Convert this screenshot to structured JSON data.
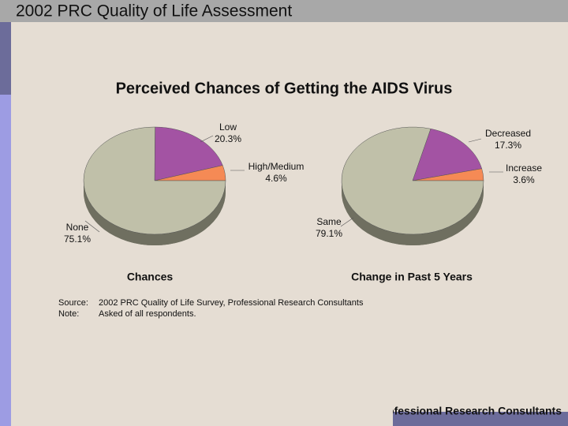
{
  "slide": {
    "header": "2002 PRC Quality of Life Assessment",
    "title": "Perceived Chances of Getting the AIDS Virus",
    "source_label": "Source:",
    "source": "2002 PRC Quality of Life Survey, Professional Research Consultants",
    "note_label": "Note:",
    "note": "Asked of all respondents.",
    "footer": "Professional Research Consultants"
  },
  "chart_data": [
    {
      "type": "pie",
      "title": "Chances",
      "categories": [
        "Low",
        "High/Medium",
        "None"
      ],
      "values": [
        20.3,
        4.6,
        75.1
      ],
      "value_labels": [
        "20.3%",
        "4.6%",
        "75.1%"
      ],
      "colors": [
        "#a353a3",
        "#f58a55",
        "#c0c0a9"
      ]
    },
    {
      "type": "pie",
      "title": "Change in Past 5 Years",
      "categories": [
        "Decreased",
        "Increase",
        "Same"
      ],
      "values": [
        17.3,
        3.6,
        79.1
      ],
      "value_labels": [
        "17.3%",
        "3.6%",
        "79.1%"
      ],
      "colors": [
        "#a353a3",
        "#f58a55",
        "#c0c0a9"
      ]
    }
  ]
}
